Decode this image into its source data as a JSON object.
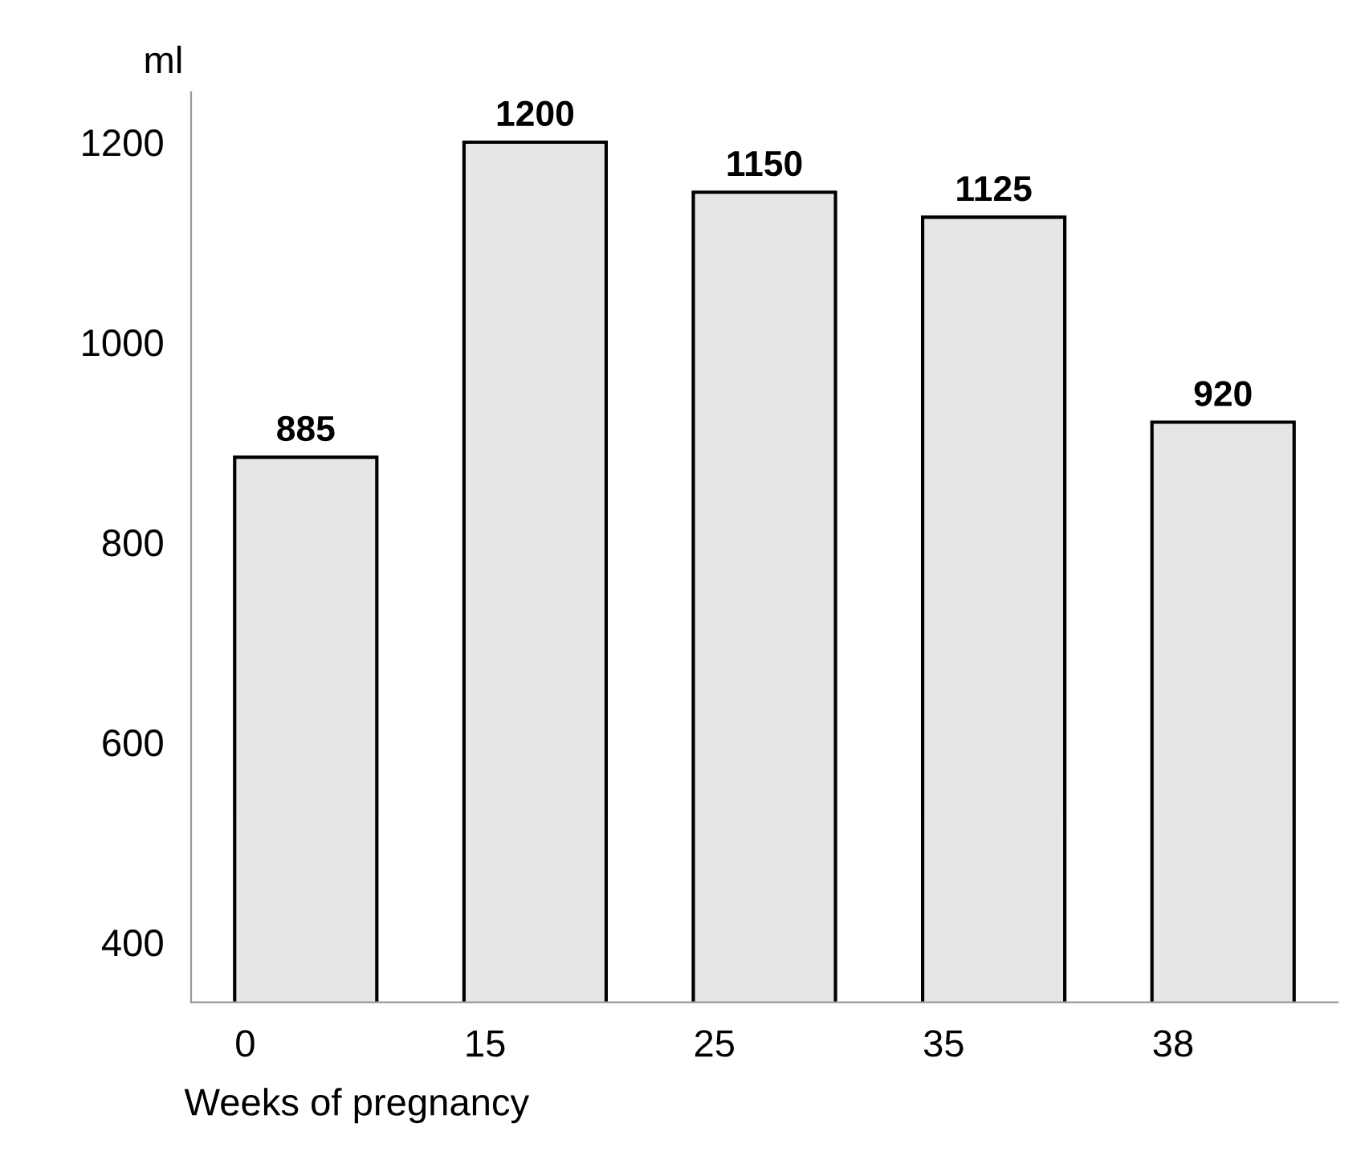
{
  "chart_data": {
    "type": "bar",
    "ylabel": "ml",
    "xlabel": "Weeks of pregnancy",
    "categories": [
      "0",
      "15",
      "25",
      "35",
      "38"
    ],
    "values": [
      885,
      1200,
      1150,
      1125,
      920
    ],
    "color": "#e6e6e6",
    "ylim": [
      340,
      1250
    ],
    "yticks": [
      400,
      600,
      800,
      1000,
      1200
    ],
    "data_labels": true,
    "grid": false,
    "legend": false
  }
}
